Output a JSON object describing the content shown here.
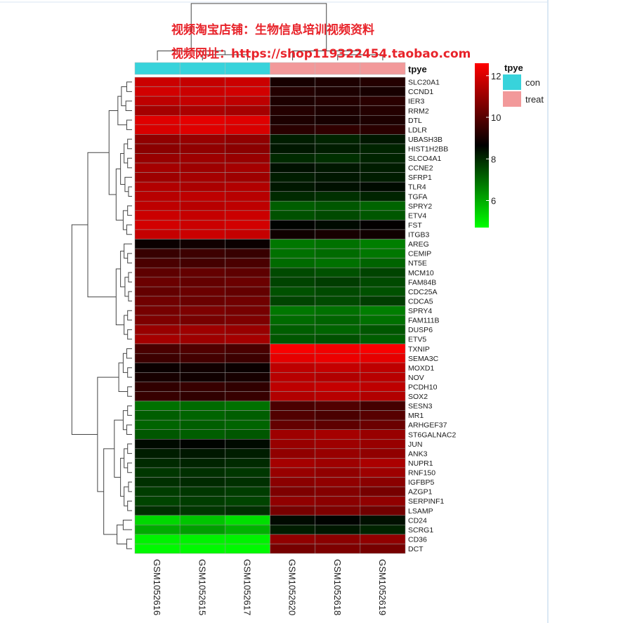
{
  "watermark": {
    "line1": "视频淘宝店铺：生物信息培训视频资料",
    "line2": "视频网址：https://shop119322454.taobao.com"
  },
  "annotation": {
    "label": "tpye",
    "legend_title": "tpye",
    "groups": [
      {
        "name": "con",
        "color": "#38d3db"
      },
      {
        "name": "treat",
        "color": "#f2999a"
      }
    ]
  },
  "colorbar": {
    "min": 4.7,
    "max": 12.6,
    "ticks": [
      12,
      10,
      8,
      6
    ],
    "colors": [
      "#00ff00",
      "#000000",
      "#ff0000"
    ]
  },
  "chart_data": {
    "type": "heatmap",
    "samples": [
      "GSM1052616",
      "GSM1052615",
      "GSM1052617",
      "GSM1052620",
      "GSM1052618",
      "GSM1052619"
    ],
    "sample_groups": [
      "con",
      "con",
      "con",
      "treat",
      "treat",
      "treat"
    ],
    "genes": [
      "SLC20A1",
      "CCND1",
      "IER3",
      "RRM2",
      "DTL",
      "LDLR",
      "UBASH3B",
      "HIST1H2BB",
      "SLCO4A1",
      "CCNE2",
      "SFRP1",
      "TLR4",
      "TGFA",
      "SPRY2",
      "ETV4",
      "FST",
      "ITGB3",
      "AREG",
      "CEMIP",
      "NT5E",
      "MCM10",
      "FAM84B",
      "CDC25A",
      "CDCA5",
      "SPRY4",
      "FAM111B",
      "DUSP6",
      "ETV5",
      "TXNIP",
      "SEMA3C",
      "MOXD1",
      "NOV",
      "PCDH10",
      "SOX2",
      "SESN3",
      "MR1",
      "ARHGEF37",
      "ST6GALNAC2",
      "JUN",
      "ANK3",
      "NUPR1",
      "RNF150",
      "IGFBP5",
      "AZGP1",
      "SERPINF1",
      "LSAMP",
      "CD24",
      "SCRG1",
      "CD36",
      "DCT"
    ],
    "values": [
      [
        11.8,
        11.7,
        11.8,
        9.0,
        9.1,
        9.2
      ],
      [
        11.9,
        11.8,
        11.9,
        9.2,
        9.1,
        9.0
      ],
      [
        11.6,
        11.7,
        11.6,
        9.1,
        9.2,
        9.3
      ],
      [
        11.2,
        11.3,
        11.2,
        9.2,
        9.1,
        9.2
      ],
      [
        12.1,
        12.2,
        12.1,
        9.1,
        9.0,
        9.1
      ],
      [
        12.0,
        12.1,
        12.0,
        9.3,
        9.4,
        9.3
      ],
      [
        10.9,
        11.0,
        10.9,
        8.2,
        8.1,
        8.3
      ],
      [
        10.8,
        10.9,
        10.8,
        8.3,
        8.2,
        8.1
      ],
      [
        11.0,
        11.1,
        11.0,
        8.0,
        7.9,
        8.1
      ],
      [
        11.2,
        11.1,
        11.2,
        8.4,
        8.3,
        8.2
      ],
      [
        11.1,
        11.2,
        11.1,
        8.2,
        8.3,
        8.2
      ],
      [
        11.4,
        11.3,
        11.4,
        8.3,
        8.4,
        8.5
      ],
      [
        11.5,
        11.6,
        11.5,
        8.0,
        7.9,
        8.1
      ],
      [
        11.6,
        11.5,
        11.6,
        7.2,
        7.3,
        7.1
      ],
      [
        11.8,
        11.7,
        11.8,
        7.4,
        7.5,
        7.3
      ],
      [
        11.9,
        11.8,
        11.9,
        8.6,
        8.5,
        8.7
      ],
      [
        11.7,
        11.8,
        11.7,
        8.9,
        9.0,
        8.9
      ],
      [
        8.8,
        8.9,
        8.8,
        6.8,
        6.9,
        6.7
      ],
      [
        9.5,
        9.6,
        9.5,
        6.9,
        7.0,
        6.8
      ],
      [
        9.8,
        9.7,
        9.8,
        7.0,
        6.9,
        7.1
      ],
      [
        10.1,
        10.2,
        10.1,
        7.5,
        7.4,
        7.6
      ],
      [
        10.3,
        10.2,
        10.3,
        7.6,
        7.7,
        7.5
      ],
      [
        10.2,
        10.3,
        10.2,
        7.4,
        7.5,
        7.4
      ],
      [
        10.4,
        10.3,
        10.4,
        7.6,
        7.5,
        7.7
      ],
      [
        10.5,
        10.6,
        10.5,
        6.8,
        6.9,
        6.7
      ],
      [
        10.6,
        10.5,
        10.6,
        7.0,
        7.1,
        6.9
      ],
      [
        11.0,
        11.1,
        11.0,
        7.2,
        7.1,
        7.3
      ],
      [
        11.2,
        11.1,
        11.2,
        7.3,
        7.4,
        7.2
      ],
      [
        9.8,
        9.9,
        9.8,
        12.5,
        12.4,
        12.5
      ],
      [
        9.6,
        9.7,
        9.6,
        12.2,
        12.3,
        12.2
      ],
      [
        8.8,
        8.9,
        8.8,
        11.6,
        11.7,
        11.6
      ],
      [
        9.0,
        8.9,
        9.0,
        11.5,
        11.4,
        11.5
      ],
      [
        9.4,
        9.5,
        9.4,
        11.6,
        11.7,
        11.6
      ],
      [
        9.5,
        9.4,
        9.5,
        11.4,
        11.5,
        11.4
      ],
      [
        6.9,
        7.0,
        6.9,
        9.8,
        9.9,
        9.7
      ],
      [
        7.2,
        7.1,
        7.2,
        9.9,
        9.8,
        10.0
      ],
      [
        7.1,
        7.2,
        7.1,
        10.2,
        10.1,
        10.3
      ],
      [
        7.3,
        7.2,
        7.3,
        11.1,
        11.2,
        11.0
      ],
      [
        8.5,
        8.6,
        8.5,
        11.0,
        11.1,
        11.0
      ],
      [
        8.2,
        8.3,
        8.2,
        10.9,
        11.0,
        10.9
      ],
      [
        8.0,
        8.1,
        8.0,
        11.2,
        11.1,
        11.3
      ],
      [
        7.8,
        7.9,
        7.8,
        11.0,
        10.9,
        11.1
      ],
      [
        7.9,
        8.0,
        7.9,
        10.8,
        10.9,
        10.8
      ],
      [
        7.7,
        7.8,
        7.7,
        10.6,
        10.7,
        10.5
      ],
      [
        7.6,
        7.7,
        7.6,
        10.9,
        10.8,
        10.9
      ],
      [
        7.9,
        7.8,
        7.9,
        10.5,
        10.6,
        10.4
      ],
      [
        5.3,
        5.6,
        5.2,
        8.5,
        8.6,
        8.4
      ],
      [
        6.0,
        6.2,
        5.9,
        8.2,
        8.3,
        8.1
      ],
      [
        4.9,
        4.9,
        4.9,
        10.9,
        10.8,
        10.9
      ],
      [
        4.8,
        4.8,
        4.8,
        10.5,
        10.6,
        10.5
      ]
    ]
  }
}
